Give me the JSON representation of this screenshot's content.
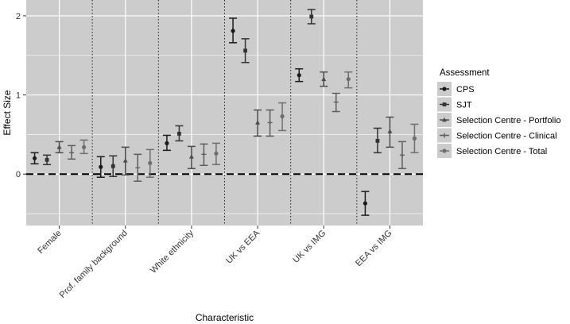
{
  "chart_data": {
    "type": "scatter",
    "subtype": "dot-and-whisker",
    "title": "",
    "xlabel": "Characteristic",
    "ylabel": "Effect Size",
    "ylim": [
      -0.65,
      2.2
    ],
    "yticks": [
      0,
      1,
      2
    ],
    "reference_line": 0,
    "categories": [
      "Female",
      "Prof. family background",
      "White ethnicity",
      "UK vs EEA",
      "UK vs IMG",
      "EEA vs IMG"
    ],
    "legend": {
      "title": "Assessment",
      "placement": "right"
    },
    "series": [
      {
        "name": "CPS",
        "marker": "circle",
        "color": "#1a1a1a",
        "points": [
          {
            "category": "Female",
            "estimate": 0.2,
            "lower": 0.13,
            "upper": 0.27
          },
          {
            "category": "Prof. family background",
            "estimate": 0.09,
            "lower": -0.04,
            "upper": 0.22
          },
          {
            "category": "White ethnicity",
            "estimate": 0.39,
            "lower": 0.3,
            "upper": 0.49
          },
          {
            "category": "UK vs EEA",
            "estimate": 1.81,
            "lower": 1.66,
            "upper": 1.97
          },
          {
            "category": "UK vs IMG",
            "estimate": 1.25,
            "lower": 1.17,
            "upper": 1.33
          },
          {
            "category": "EEA vs IMG",
            "estimate": -0.37,
            "lower": -0.52,
            "upper": -0.22
          }
        ]
      },
      {
        "name": "SJT",
        "marker": "square",
        "color": "#333333",
        "points": [
          {
            "category": "Female",
            "estimate": 0.18,
            "lower": 0.12,
            "upper": 0.24
          },
          {
            "category": "Prof. family background",
            "estimate": 0.1,
            "lower": -0.03,
            "upper": 0.23
          },
          {
            "category": "White ethnicity",
            "estimate": 0.51,
            "lower": 0.42,
            "upper": 0.61
          },
          {
            "category": "UK vs EEA",
            "estimate": 1.56,
            "lower": 1.41,
            "upper": 1.71
          },
          {
            "category": "UK vs IMG",
            "estimate": 1.99,
            "lower": 1.9,
            "upper": 2.08
          },
          {
            "category": "EEA vs IMG",
            "estimate": 0.42,
            "lower": 0.27,
            "upper": 0.58
          }
        ]
      },
      {
        "name": "Selection Centre - Portfolio",
        "marker": "triangle",
        "color": "#4d4d4d",
        "points": [
          {
            "category": "Female",
            "estimate": 0.34,
            "lower": 0.27,
            "upper": 0.41
          },
          {
            "category": "Prof. family background",
            "estimate": 0.17,
            "lower": -0.01,
            "upper": 0.34
          },
          {
            "category": "White ethnicity",
            "estimate": 0.22,
            "lower": 0.07,
            "upper": 0.35
          },
          {
            "category": "UK vs EEA",
            "estimate": 0.65,
            "lower": 0.48,
            "upper": 0.81
          },
          {
            "category": "UK vs IMG",
            "estimate": 1.2,
            "lower": 1.11,
            "upper": 1.29
          },
          {
            "category": "EEA vs IMG",
            "estimate": 0.54,
            "lower": 0.34,
            "upper": 0.72
          }
        ]
      },
      {
        "name": "Selection Centre - Clinical",
        "marker": "plus",
        "color": "#5e5e5e",
        "points": [
          {
            "category": "Female",
            "estimate": 0.27,
            "lower": 0.19,
            "upper": 0.36
          },
          {
            "category": "Prof. family background",
            "estimate": 0.08,
            "lower": -0.09,
            "upper": 0.25
          },
          {
            "category": "White ethnicity",
            "estimate": 0.25,
            "lower": 0.11,
            "upper": 0.38
          },
          {
            "category": "UK vs EEA",
            "estimate": 0.65,
            "lower": 0.48,
            "upper": 0.81
          },
          {
            "category": "UK vs IMG",
            "estimate": 0.91,
            "lower": 0.79,
            "upper": 1.02
          },
          {
            "category": "EEA vs IMG",
            "estimate": 0.24,
            "lower": 0.07,
            "upper": 0.41
          }
        ]
      },
      {
        "name": "Selection Centre - Total",
        "marker": "circle",
        "color": "#6e6e6e",
        "points": [
          {
            "category": "Female",
            "estimate": 0.34,
            "lower": 0.26,
            "upper": 0.43
          },
          {
            "category": "Prof. family background",
            "estimate": 0.14,
            "lower": -0.04,
            "upper": 0.31
          },
          {
            "category": "White ethnicity",
            "estimate": 0.26,
            "lower": 0.12,
            "upper": 0.39
          },
          {
            "category": "UK vs EEA",
            "estimate": 0.73,
            "lower": 0.55,
            "upper": 0.9
          },
          {
            "category": "UK vs IMG",
            "estimate": 1.2,
            "lower": 1.09,
            "upper": 1.29
          },
          {
            "category": "EEA vs IMG",
            "estimate": 0.45,
            "lower": 0.27,
            "upper": 0.63
          }
        ]
      }
    ]
  },
  "colors": {
    "panel_background": "#cccccc",
    "grid": "#ffffff",
    "separator": "#222222",
    "reference_line": "#000000"
  }
}
